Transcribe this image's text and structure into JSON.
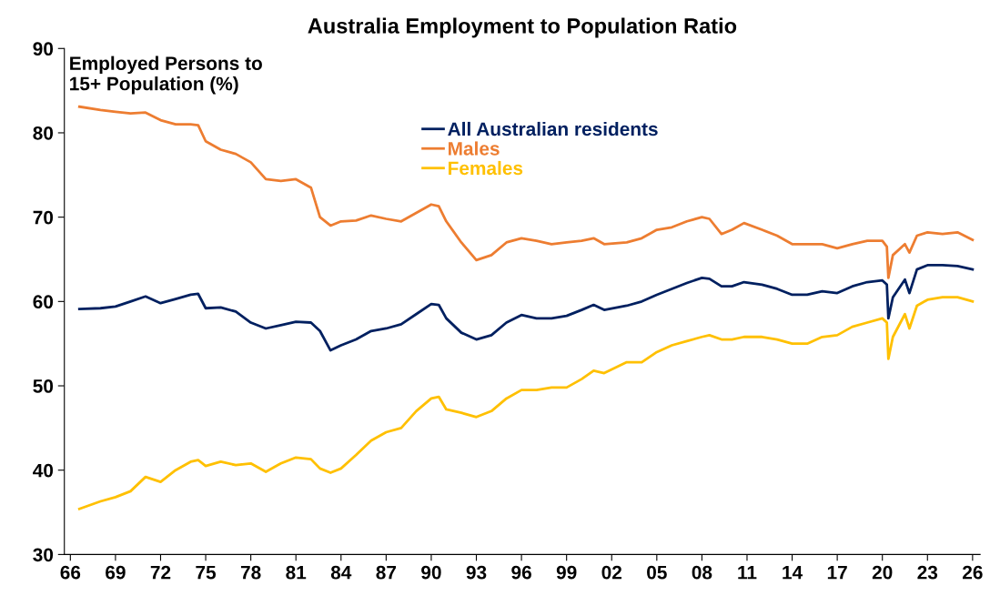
{
  "chart_data": {
    "type": "line",
    "title": "Australia Employment to Population Ratio",
    "annotations": [
      "Employed Persons to\n15+ Population (%)"
    ],
    "x": [
      1966.6,
      1968,
      1969,
      1970,
      1971,
      1972,
      1973,
      1974,
      1974.5,
      1975,
      1976,
      1977,
      1978,
      1979,
      1980,
      1981,
      1982,
      1982.6,
      1983.3,
      1984,
      1985,
      1986,
      1987,
      1988,
      1989,
      1990,
      1990.5,
      1991,
      1992,
      1993,
      1994,
      1995,
      1996,
      1997,
      1998,
      1999,
      2000,
      2000.8,
      2001.5,
      2003,
      2004,
      2005,
      2006,
      2007,
      2008,
      2008.5,
      2009.3,
      2010,
      2010.8,
      2012,
      2013,
      2014,
      2015,
      2016,
      2017,
      2018,
      2019,
      2020.0,
      2020.3,
      2020.4,
      2020.7,
      2021.5,
      2021.8,
      2022.3,
      2023,
      2024,
      2025,
      2026
    ],
    "series": [
      {
        "name": "All Australian residents",
        "color": "#002060",
        "values": [
          59.1,
          59.2,
          59.4,
          60.0,
          60.6,
          59.8,
          60.3,
          60.8,
          60.9,
          59.2,
          59.3,
          58.8,
          57.5,
          56.8,
          57.2,
          57.6,
          57.5,
          56.5,
          54.2,
          54.8,
          55.5,
          56.5,
          56.8,
          57.3,
          58.5,
          59.7,
          59.6,
          58.0,
          56.3,
          55.5,
          56.0,
          57.5,
          58.4,
          58.0,
          58.0,
          58.3,
          59.0,
          59.6,
          59.0,
          59.5,
          60.0,
          60.8,
          61.5,
          62.2,
          62.8,
          62.7,
          61.8,
          61.8,
          62.3,
          62.0,
          61.5,
          60.8,
          60.8,
          61.2,
          61.0,
          61.8,
          62.3,
          62.5,
          62.0,
          58.0,
          60.5,
          62.6,
          61.0,
          63.8,
          64.3,
          64.3,
          64.2,
          63.8
        ]
      },
      {
        "name": "Males",
        "color": "#ed7d31",
        "values": [
          83.1,
          82.7,
          82.5,
          82.3,
          82.4,
          81.5,
          81.0,
          81.0,
          80.9,
          79.0,
          78.0,
          77.5,
          76.5,
          74.5,
          74.3,
          74.5,
          73.5,
          70.0,
          69.0,
          69.5,
          69.6,
          70.2,
          69.8,
          69.5,
          70.5,
          71.5,
          71.3,
          69.5,
          67.0,
          64.9,
          65.5,
          67.0,
          67.5,
          67.2,
          66.8,
          67.0,
          67.2,
          67.5,
          66.8,
          67.0,
          67.5,
          68.5,
          68.8,
          69.5,
          70.0,
          69.8,
          68.0,
          68.5,
          69.3,
          68.5,
          67.8,
          66.8,
          66.8,
          66.8,
          66.3,
          66.8,
          67.2,
          67.2,
          66.5,
          62.8,
          65.5,
          66.8,
          65.8,
          67.8,
          68.2,
          68.0,
          68.2,
          67.3
        ]
      },
      {
        "name": "Females",
        "color": "#ffc000",
        "values": [
          35.4,
          36.3,
          36.8,
          37.5,
          39.2,
          38.6,
          40.0,
          41.0,
          41.2,
          40.5,
          41.0,
          40.6,
          40.8,
          39.8,
          40.8,
          41.5,
          41.3,
          40.2,
          39.7,
          40.2,
          41.8,
          43.5,
          44.5,
          45.0,
          47.0,
          48.5,
          48.7,
          47.2,
          46.8,
          46.3,
          47.0,
          48.5,
          49.5,
          49.5,
          49.8,
          49.8,
          50.8,
          51.8,
          51.5,
          52.8,
          52.8,
          54.0,
          54.8,
          55.3,
          55.8,
          56.0,
          55.5,
          55.5,
          55.8,
          55.8,
          55.5,
          55.0,
          55.0,
          55.8,
          56.0,
          57.0,
          57.5,
          58.0,
          57.5,
          53.2,
          55.8,
          58.5,
          56.8,
          59.5,
          60.2,
          60.5,
          60.5,
          60.0
        ]
      }
    ],
    "xlim": [
      1965.6,
      2026.5
    ],
    "xticks": [
      {
        "value": 1966,
        "label": "66"
      },
      {
        "value": 1969,
        "label": "69"
      },
      {
        "value": 1972,
        "label": "72"
      },
      {
        "value": 1975,
        "label": "75"
      },
      {
        "value": 1978,
        "label": "78"
      },
      {
        "value": 1981,
        "label": "81"
      },
      {
        "value": 1984,
        "label": "84"
      },
      {
        "value": 1987,
        "label": "87"
      },
      {
        "value": 1990,
        "label": "90"
      },
      {
        "value": 1993,
        "label": "93"
      },
      {
        "value": 1996,
        "label": "96"
      },
      {
        "value": 1999,
        "label": "99"
      },
      {
        "value": 2002,
        "label": "02"
      },
      {
        "value": 2005,
        "label": "05"
      },
      {
        "value": 2008,
        "label": "08"
      },
      {
        "value": 2011,
        "label": "11"
      },
      {
        "value": 2014,
        "label": "14"
      },
      {
        "value": 2017,
        "label": "17"
      },
      {
        "value": 2020,
        "label": "20"
      },
      {
        "value": 2023,
        "label": "23"
      },
      {
        "value": 2026,
        "label": "26"
      }
    ],
    "ylim": [
      30,
      90
    ],
    "yticks": [
      30,
      40,
      50,
      60,
      70,
      80,
      90
    ],
    "legend": "top",
    "grid": false,
    "marker": "none",
    "line_style": "solid"
  }
}
